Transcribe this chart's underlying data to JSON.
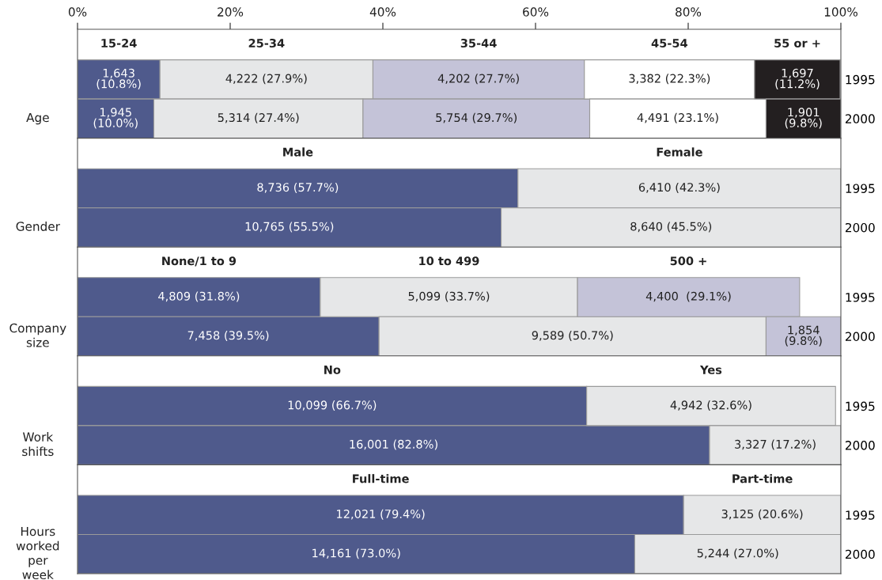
{
  "chart_data": [
    {
      "type": "bar",
      "orientation": "horizontal",
      "stacked": true,
      "title": "Age",
      "categories": [
        "1995",
        "2000"
      ],
      "xlim": [
        0,
        100
      ],
      "xticks": [
        {
          "value": 0,
          "label": "0%"
        },
        {
          "value": 20,
          "label": "20%"
        },
        {
          "value": 40,
          "label": "40%"
        },
        {
          "value": 60,
          "label": "60%"
        },
        {
          "value": 80,
          "label": "80%"
        },
        {
          "value": 100,
          "label": "100%"
        }
      ],
      "legend": false,
      "series": [
        {
          "name": "15-24",
          "color": "#4f5a8c",
          "values": [
            10.8,
            10.0
          ],
          "value_labels": [
            "1,643\n(10.8%)",
            "1,945\n(10.0%)"
          ]
        },
        {
          "name": "25-34",
          "color": "#e6e7e8",
          "values": [
            27.9,
            27.4
          ],
          "value_labels": [
            "4,222 (27.9%)",
            "5,314 (27.4%)"
          ]
        },
        {
          "name": "35-44",
          "color": "#c4c3d8",
          "values": [
            27.7,
            29.7
          ],
          "value_labels": [
            "4,202 (27.7%)",
            "5,754 (29.7%)"
          ]
        },
        {
          "name": "45-54",
          "color": "#ffffff",
          "values": [
            22.3,
            23.1
          ],
          "value_labels": [
            "3,382 (22.3%)",
            "4,491 (23.1%)"
          ]
        },
        {
          "name": "55 or +",
          "color": "#231f20",
          "values": [
            11.2,
            9.8
          ],
          "value_labels": [
            "1,697\n(11.2%)",
            "1,901\n(9.8%)"
          ]
        }
      ]
    },
    {
      "type": "bar",
      "orientation": "horizontal",
      "stacked": true,
      "title": "Gender",
      "categories": [
        "1995",
        "2000"
      ],
      "xlim": [
        0,
        100
      ],
      "tick_labels": "y",
      "legend": false,
      "series": [
        {
          "name": "Male",
          "color": "#4f5a8c",
          "values": [
            57.7,
            55.5
          ],
          "value_labels": [
            "8,736 (57.7%)",
            "10,765 (55.5%)"
          ]
        },
        {
          "name": "Female",
          "color": "#e6e7e8",
          "values": [
            42.3,
            44.5
          ],
          "value_labels": [
            "6,410 (42.3%)",
            null
          ]
        }
      ],
      "annotations": [
        {
          "text": "8,640 (45.5%)",
          "x": 77.75,
          "y": "2000"
        }
      ]
    },
    {
      "type": "bar",
      "orientation": "horizontal",
      "stacked": true,
      "title": "Company\nsize",
      "categories": [
        "1995",
        "2000"
      ],
      "xlim": [
        0,
        100
      ],
      "tick_labels": "y",
      "legend": false,
      "series": [
        {
          "name": "None/1 to 9",
          "color": "#4f5a8c",
          "values": [
            31.8,
            39.5
          ],
          "value_labels": [
            "4,809 (31.8%)",
            "7,458 (39.5%)"
          ]
        },
        {
          "name": "10 to 499",
          "color": "#e6e7e8",
          "values": [
            33.7,
            50.7
          ],
          "value_labels": [
            "5,099 (33.7%)",
            "9,589 (50.7%)"
          ]
        },
        {
          "name": "500 +",
          "color": "#c4c3d8",
          "values": [
            29.1,
            9.8
          ],
          "value_labels": [
            "4,400  (29.1%)",
            "1,854\n(9.8%)"
          ]
        }
      ]
    },
    {
      "type": "bar",
      "orientation": "horizontal",
      "stacked": true,
      "title": "Work\nshifts",
      "categories": [
        "1995",
        "2000"
      ],
      "xlim": [
        0,
        100
      ],
      "tick_labels": "y",
      "legend": false,
      "series": [
        {
          "name": "No",
          "color": "#4f5a8c",
          "values": [
            66.7,
            82.8
          ],
          "value_labels": [
            "10,099 (66.7%)",
            "16,001 (82.8%)"
          ]
        },
        {
          "name": "Yes",
          "color": "#e6e7e8",
          "values": [
            32.6,
            17.2
          ],
          "value_labels": [
            "4,942 (32.6%)",
            "3,327 (17.2%)"
          ]
        }
      ]
    },
    {
      "type": "bar",
      "orientation": "horizontal",
      "stacked": true,
      "title": "Hours\nworked\nper\nweek",
      "categories": [
        "1995",
        "2000"
      ],
      "xlim": [
        0,
        100
      ],
      "tick_labels": "y",
      "legend": false,
      "series": [
        {
          "name": "Full-time",
          "color": "#4f5a8c",
          "values": [
            79.4,
            73.0
          ],
          "value_labels": [
            "12,021 (79.4%)",
            "14,161 (73.0%)"
          ]
        },
        {
          "name": "Part-time",
          "color": "#e6e7e8",
          "values": [
            20.6,
            27.0
          ],
          "value_labels": [
            "3,125 (20.6%)",
            "5,244 (27.0%)"
          ]
        }
      ]
    }
  ]
}
